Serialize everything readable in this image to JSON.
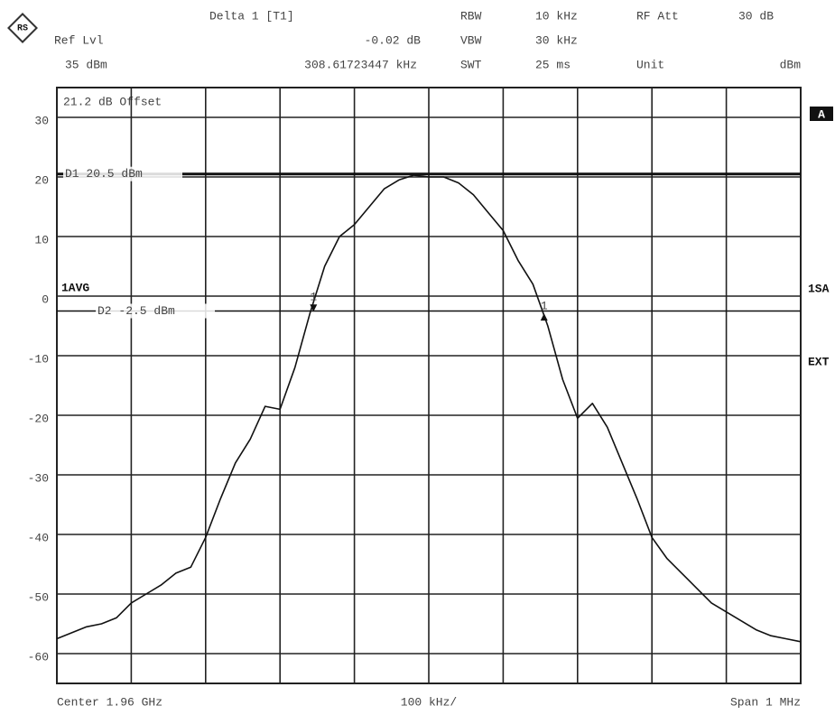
{
  "header": {
    "marker_title": "Delta 1 [T1]",
    "delta_level": "-0.02 dB",
    "delta_freq": "308.61723447 kHz",
    "ref_label": "Ref Lvl",
    "ref_value": "35 dBm",
    "rbw_label": "RBW",
    "rbw_value": "10 kHz",
    "vbw_label": "VBW",
    "vbw_value": "30 kHz",
    "swt_label": "SWT",
    "swt_value": "25 ms",
    "att_label": "RF Att",
    "att_value": "30 dB",
    "unit_label": "Unit",
    "unit_value": "dBm"
  },
  "chart_data": {
    "type": "line",
    "offset_label": "21.2 dB Offset",
    "trace_label": "1AVG",
    "side_labels": [
      "A",
      "1SA",
      "EXT"
    ],
    "footer": {
      "center": "Center 1.96 GHz",
      "scale": "100 kHz/",
      "span": "Span 1 MHz"
    },
    "x": [
      -500,
      -480,
      -460,
      -440,
      -420,
      -400,
      -380,
      -360,
      -340,
      -320,
      -300,
      -280,
      -260,
      -240,
      -220,
      -200,
      -180,
      -160,
      -140,
      -120,
      -100,
      -80,
      -60,
      -40,
      -20,
      0,
      20,
      40,
      60,
      80,
      100,
      120,
      140,
      160,
      180,
      200,
      220,
      240,
      260,
      280,
      300,
      320,
      340,
      360,
      380,
      400,
      420,
      440,
      460,
      480,
      500
    ],
    "series": [
      {
        "name": "1AVG",
        "color": "#111111",
        "values": [
          -57.5,
          -56.5,
          -55.5,
          -55,
          -54,
          -51.5,
          -50,
          -48.5,
          -46.5,
          -45.5,
          -40.5,
          -34,
          -28,
          -24,
          -18.5,
          -19,
          -12,
          -3,
          5,
          10,
          12,
          15,
          18,
          19.5,
          20.3,
          20,
          20,
          19,
          17,
          14,
          11,
          6,
          2,
          -5,
          -14,
          -20.5,
          -18,
          -22,
          -28,
          -34,
          -40.5,
          -44,
          -46.5,
          -49,
          -51.5,
          -53,
          -54.5,
          -56,
          -57,
          -57.5,
          -58
        ]
      }
    ],
    "display_lines": [
      {
        "label": "D1 20.5 dBm",
        "value": 20.5
      },
      {
        "label": "D2 -2.5 dBm",
        "value": -2.5
      }
    ],
    "markers": [
      {
        "label": "1",
        "x": -155,
        "y": -2
      },
      {
        "label": "1",
        "x": 155,
        "y": -3.5
      }
    ],
    "xlim": [
      -500,
      500
    ],
    "xticks": [
      -500,
      -400,
      -300,
      -200,
      -100,
      0,
      100,
      200,
      300,
      400,
      500
    ],
    "ylim": [
      -65,
      35
    ],
    "yticks": [
      30,
      20,
      10,
      0,
      -10,
      -20,
      -30,
      -40,
      -50,
      -60
    ],
    "grid": true
  }
}
